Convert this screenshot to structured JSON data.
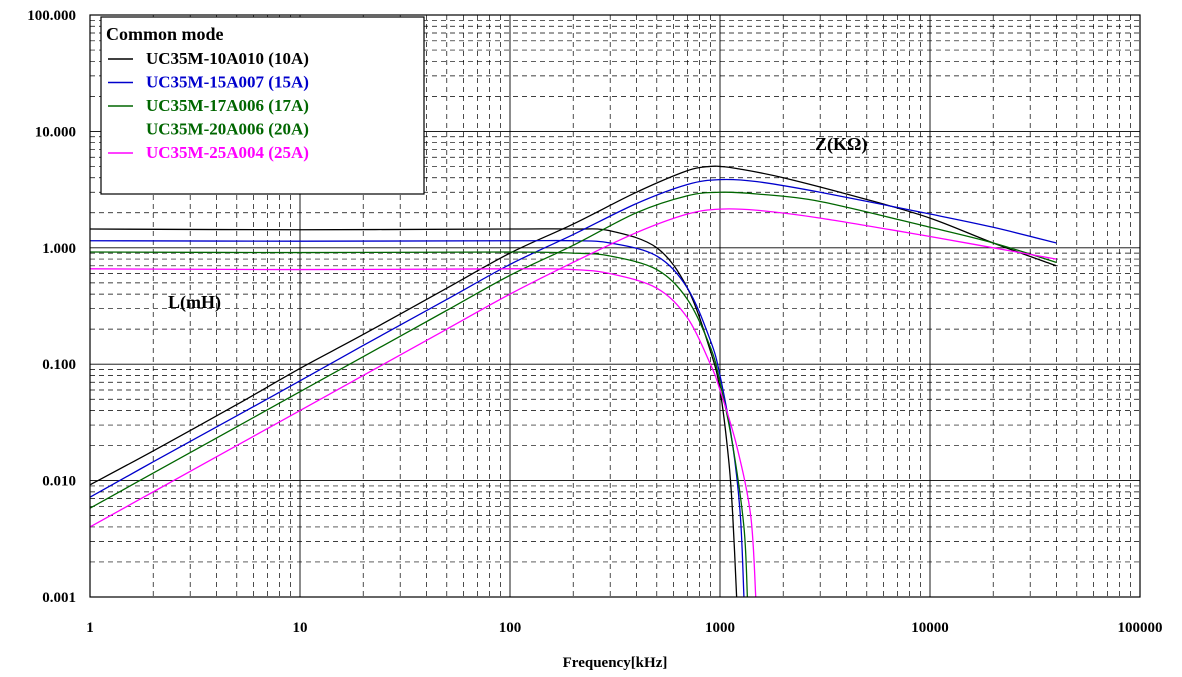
{
  "chart_data": {
    "type": "line",
    "xlabel": "Frequency[kHz]",
    "x_scale": "log",
    "y_scale": "log",
    "xlim": [
      1,
      100000
    ],
    "ylim": [
      0.001,
      100
    ],
    "x_tick_labels": [
      "1",
      "10",
      "100",
      "1000",
      "10000",
      "100000"
    ],
    "y_tick_labels": [
      "0.001",
      "0.010",
      "0.100",
      "1.000",
      "10.000",
      "100.000"
    ],
    "grid": true,
    "legend_title": "Common mode",
    "legend_position": "top-left",
    "annotations": {
      "impedance_label": "Z(KΩ)",
      "inductance_label": "L(mH)"
    },
    "series": [
      {
        "name": "UC35M-10A010 (10A)",
        "color": "#000000",
        "inductance": {
          "x": [
            1,
            10,
            100,
            200,
            300,
            500,
            700,
            900,
            1000,
            1100,
            1150,
            1200
          ],
          "y": [
            1.45,
            1.43,
            1.45,
            1.45,
            1.4,
            1.0,
            0.45,
            0.13,
            0.06,
            0.015,
            0.005,
            0.001
          ]
        },
        "impedance": {
          "x": [
            1,
            2,
            5,
            10,
            20,
            50,
            100,
            200,
            400,
            700,
            900,
            1000,
            1200,
            2000,
            5000,
            10000,
            20000,
            40000
          ],
          "y": [
            0.0092,
            0.018,
            0.045,
            0.092,
            0.18,
            0.45,
            0.9,
            1.6,
            3.0,
            4.6,
            5.0,
            5.0,
            4.8,
            4.0,
            2.6,
            1.8,
            1.1,
            0.7
          ]
        }
      },
      {
        "name": "UC35M-15A007 (15A)",
        "color": "#0000cc",
        "inductance": {
          "x": [
            1,
            10,
            100,
            200,
            300,
            500,
            700,
            900,
            1000,
            1150,
            1250,
            1300
          ],
          "y": [
            1.15,
            1.14,
            1.15,
            1.15,
            1.1,
            0.85,
            0.45,
            0.16,
            0.08,
            0.02,
            0.005,
            0.001
          ]
        },
        "impedance": {
          "x": [
            1,
            2,
            5,
            10,
            20,
            50,
            100,
            200,
            400,
            700,
            1000,
            1500,
            3000,
            10000,
            20000,
            40000
          ],
          "y": [
            0.0072,
            0.0145,
            0.036,
            0.072,
            0.145,
            0.36,
            0.72,
            1.3,
            2.4,
            3.5,
            3.85,
            3.7,
            3.0,
            1.95,
            1.5,
            1.1
          ]
        }
      },
      {
        "name": "UC35M-17A006 (17A)",
        "color": "#006600",
        "inductance": {
          "x": [
            1,
            10,
            100,
            200,
            300,
            500,
            700,
            900,
            1000,
            1150,
            1300,
            1350
          ],
          "y": [
            0.92,
            0.91,
            0.92,
            0.9,
            0.85,
            0.65,
            0.36,
            0.14,
            0.07,
            0.02,
            0.004,
            0.001
          ]
        },
        "impedance": {
          "x": [
            1,
            2,
            5,
            10,
            20,
            50,
            100,
            200,
            400,
            700,
            1000,
            1500,
            3000,
            10000,
            20000,
            40000
          ],
          "y": [
            0.0058,
            0.0116,
            0.029,
            0.058,
            0.116,
            0.29,
            0.58,
            1.05,
            2.0,
            2.8,
            3.0,
            2.9,
            2.5,
            1.5,
            1.1,
            0.75
          ]
        }
      },
      {
        "name": "UC35M-20A006 (20A)",
        "color": "#006600",
        "inductance": null,
        "impedance": null
      },
      {
        "name": "UC35M-25A004 (25A)",
        "color": "#ff00ff",
        "inductance": {
          "x": [
            1,
            10,
            100,
            200,
            300,
            500,
            700,
            900,
            1000,
            1200,
            1400,
            1480
          ],
          "y": [
            0.66,
            0.65,
            0.66,
            0.65,
            0.6,
            0.45,
            0.25,
            0.1,
            0.06,
            0.02,
            0.005,
            0.001
          ]
        },
        "impedance": {
          "x": [
            1,
            2,
            5,
            10,
            20,
            50,
            100,
            200,
            400,
            700,
            1000,
            1500,
            3000,
            10000,
            20000,
            40000
          ],
          "y": [
            0.004,
            0.008,
            0.02,
            0.04,
            0.08,
            0.2,
            0.4,
            0.75,
            1.35,
            1.95,
            2.15,
            2.1,
            1.8,
            1.25,
            1.0,
            0.8
          ]
        }
      }
    ]
  }
}
